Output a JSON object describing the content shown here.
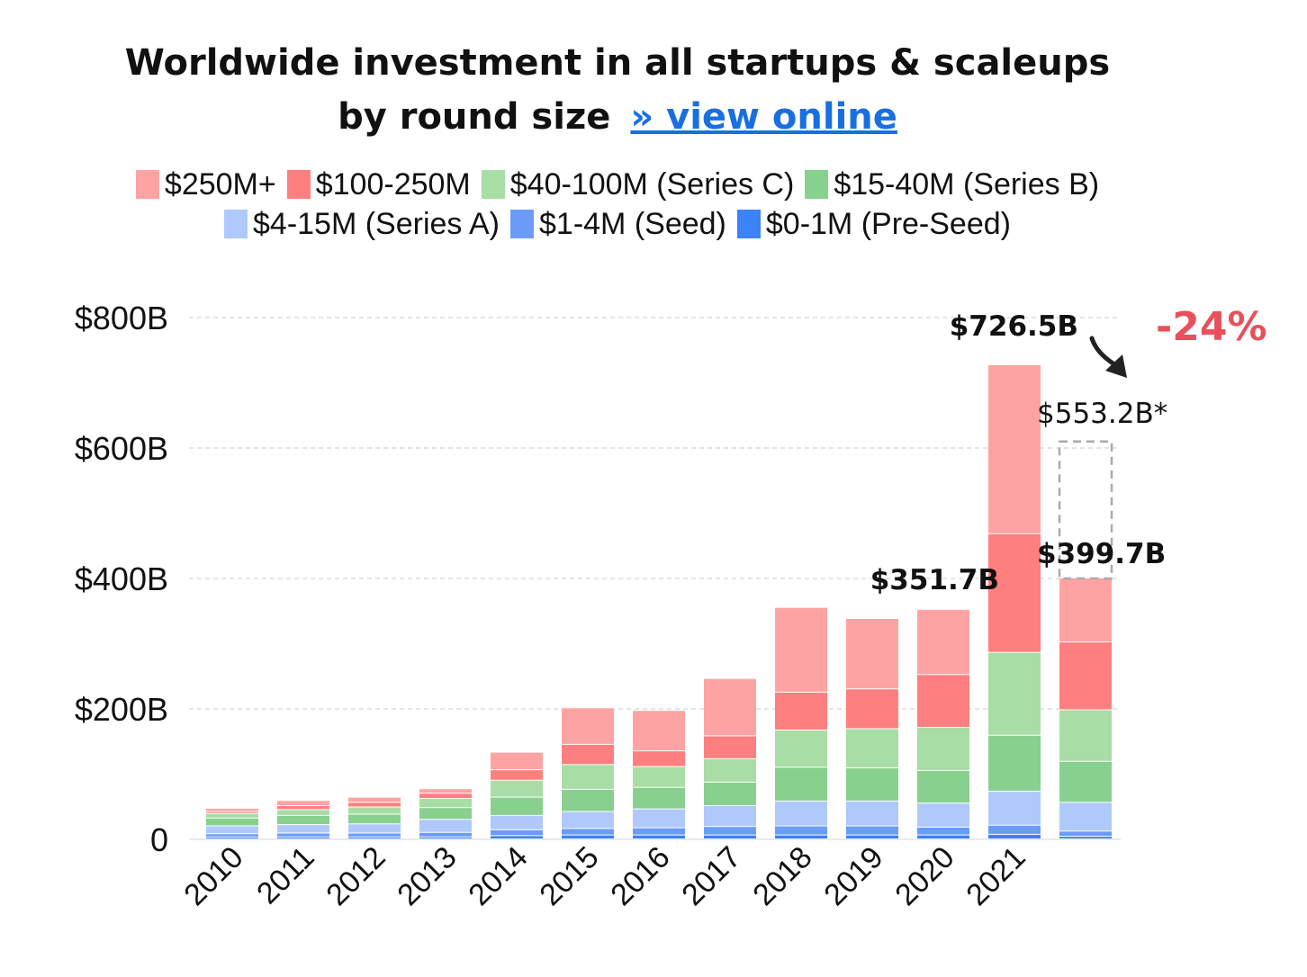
{
  "chart_data": {
    "type": "bar",
    "stacked": true,
    "title_line1": "Worldwide investment in all startups & scaleups",
    "title_line2": "by round size",
    "title_link": "» view online",
    "categories": [
      "2010",
      "2011",
      "2012",
      "2013",
      "2014",
      "2015",
      "2016",
      "2017",
      "2018",
      "2019",
      "2020",
      "2021",
      ""
    ],
    "ylim": [
      0,
      800
    ],
    "yticks": [
      {
        "value": 0,
        "label": "0"
      },
      {
        "value": 200,
        "label": "$200B"
      },
      {
        "value": 400,
        "label": "$400B"
      },
      {
        "value": 600,
        "label": "$600B"
      },
      {
        "value": 800,
        "label": "$800B"
      }
    ],
    "grid": true,
    "legend_position": "top",
    "series": [
      {
        "name": "$0-1M (Pre-Seed)",
        "color": "#3d82f6",
        "values": [
          3,
          3,
          3,
          3,
          5,
          6,
          6,
          6,
          6,
          6,
          6,
          7,
          4
        ]
      },
      {
        "name": "$1-4M (Seed)",
        "color": "#6a9cf8",
        "values": [
          5,
          6,
          6,
          7,
          9,
          10,
          11,
          13,
          14,
          14,
          12,
          14,
          8
        ]
      },
      {
        "name": "$4-15M (Series A)",
        "color": "#b0c9fc",
        "values": [
          12,
          13,
          14,
          20,
          22,
          26,
          29,
          32,
          38,
          38,
          37,
          52,
          44
        ]
      },
      {
        "name": "$15-40M (Series B)",
        "color": "#88d08e",
        "values": [
          12,
          14,
          15,
          18,
          28,
          34,
          33,
          36,
          52,
          51,
          50,
          86,
          63
        ]
      },
      {
        "name": "$40-100M (Series C)",
        "color": "#a8dda6",
        "values": [
          7,
          9,
          11,
          14,
          26,
          38,
          32,
          36,
          57,
          60,
          66,
          127,
          79
        ]
      },
      {
        "name": "$100-250M (Series)",
        "legend_hidden": true,
        "color": "#fe7f7f",
        "values": [
          0,
          0,
          0,
          0,
          0,
          0,
          0,
          0,
          0,
          0,
          0,
          0,
          0
        ]
      },
      {
        "name": "$100-250M",
        "color": "#fe7f7f",
        "values": [
          3,
          6,
          7,
          8,
          16,
          31,
          24,
          35,
          58,
          61,
          81,
          182,
          104
        ]
      },
      {
        "name": "$250M+",
        "color": "#fea3a3",
        "values": [
          5,
          8,
          8,
          7,
          27,
          56,
          62,
          88,
          130,
          108,
          100,
          259,
          98
        ]
      }
    ],
    "legend_order": [
      "$250M+",
      "$100-250M",
      "$40-100M (Series C)",
      "$15-40M (Series B)",
      "$4-15M (Series A)",
      "$1-4M (Seed)",
      "$0-1M (Pre-Seed)"
    ],
    "annotations": {
      "total_2020": "$351.7B",
      "total_2021": "$726.5B",
      "total_2022": "$399.7B",
      "projected_2022": "$553.2B*",
      "projected_2022_value": 610,
      "change": "-24%"
    }
  }
}
